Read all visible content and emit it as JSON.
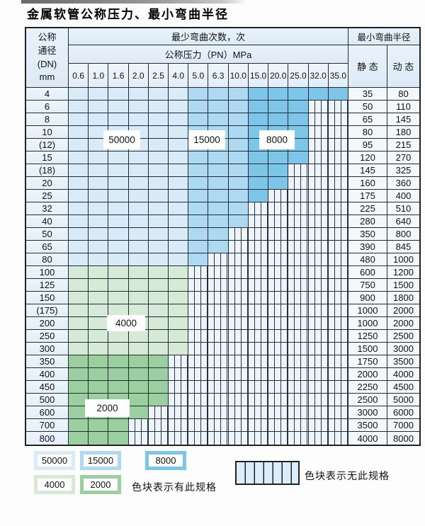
{
  "title": "金属软管公称压力、最小弯曲半径",
  "table": {
    "header": {
      "dn_lines": [
        "公称",
        "通径",
        "(DN)",
        "mm"
      ],
      "bend_cycles": "最少弯曲次数，次",
      "pressure": "公称压力（PN）MPa",
      "pn_columns": [
        "0.6",
        "1.0",
        "1.6",
        "2.0",
        "2.5",
        "4.0",
        "5.0",
        "6.3",
        "10.0",
        "15.0",
        "20.0",
        "25.0",
        "32.0",
        "35.0"
      ],
      "min_radius": "最小弯曲半径",
      "static_label": "静 态",
      "dynamic_label": "动 态"
    },
    "rows": [
      {
        "dn": "4",
        "fill": "blue",
        "span": 14,
        "static": "35",
        "dynamic": "80"
      },
      {
        "dn": "6",
        "fill": "blue",
        "span": 12,
        "static": "50",
        "dynamic": "110"
      },
      {
        "dn": "8",
        "fill": "blue",
        "span": 12,
        "static": "65",
        "dynamic": "145"
      },
      {
        "dn": "10",
        "fill": "blue",
        "span": 12,
        "static": "80",
        "dynamic": "180"
      },
      {
        "dn": "(12)",
        "fill": "blue",
        "span": 12,
        "static": "95",
        "dynamic": "215"
      },
      {
        "dn": "15",
        "fill": "blue",
        "span": 12,
        "static": "120",
        "dynamic": "270"
      },
      {
        "dn": "(18)",
        "fill": "blue",
        "span": 11,
        "static": "145",
        "dynamic": "325"
      },
      {
        "dn": "20",
        "fill": "blue",
        "span": 11,
        "static": "160",
        "dynamic": "360"
      },
      {
        "dn": "25",
        "fill": "blue",
        "span": 10,
        "static": "175",
        "dynamic": "400"
      },
      {
        "dn": "32",
        "fill": "blue",
        "span": 9,
        "static": "225",
        "dynamic": "510"
      },
      {
        "dn": "40",
        "fill": "blue",
        "span": 9,
        "static": "280",
        "dynamic": "640"
      },
      {
        "dn": "50",
        "fill": "blue",
        "span": 8,
        "static": "350",
        "dynamic": "800"
      },
      {
        "dn": "65",
        "fill": "blue",
        "span": 8,
        "static": "390",
        "dynamic": "845"
      },
      {
        "dn": "80",
        "fill": "blue",
        "span": 7,
        "static": "480",
        "dynamic": "1000"
      },
      {
        "dn": "100",
        "fill": "green-4000",
        "span": 6,
        "static": "600",
        "dynamic": "1200"
      },
      {
        "dn": "125",
        "fill": "green-4000",
        "span": 6,
        "static": "750",
        "dynamic": "1500"
      },
      {
        "dn": "150",
        "fill": "green-4000",
        "span": 6,
        "static": "900",
        "dynamic": "1800"
      },
      {
        "dn": "(175)",
        "fill": "green-4000",
        "span": 6,
        "static": "1000",
        "dynamic": "2000"
      },
      {
        "dn": "200",
        "fill": "green-4000",
        "span": 6,
        "static": "1000",
        "dynamic": "2000"
      },
      {
        "dn": "250",
        "fill": "green-4000",
        "span": 6,
        "static": "1250",
        "dynamic": "2500"
      },
      {
        "dn": "300",
        "fill": "green-4000",
        "span": 6,
        "static": "1500",
        "dynamic": "3000"
      },
      {
        "dn": "350",
        "fill": "green-2000",
        "span": 5,
        "static": "1750",
        "dynamic": "3500"
      },
      {
        "dn": "400",
        "fill": "green-2000",
        "span": 5,
        "static": "2000",
        "dynamic": "4000"
      },
      {
        "dn": "450",
        "fill": "green-2000",
        "span": 5,
        "static": "2250",
        "dynamic": "4500"
      },
      {
        "dn": "500",
        "fill": "green-2000",
        "span": 5,
        "static": "2500",
        "dynamic": "5000"
      },
      {
        "dn": "600",
        "fill": "green-2000",
        "span": 4,
        "static": "3000",
        "dynamic": "6000"
      },
      {
        "dn": "700",
        "fill": "green-2000",
        "span": 3,
        "static": "3500",
        "dynamic": "7000"
      },
      {
        "dn": "800",
        "fill": "green-2000",
        "span": 3,
        "static": "4000",
        "dynamic": "8000"
      }
    ]
  },
  "annotations": [
    {
      "label": "50000"
    },
    {
      "label": "15000"
    },
    {
      "label": "8000"
    },
    {
      "label": "4000"
    },
    {
      "label": "2000"
    }
  ],
  "colors": {
    "blue_50000": "#d9ebf8",
    "blue_15000": "#aed9f2",
    "blue_8000": "#7ec5ea",
    "green_4000": "#d7e9d7",
    "green_2000": "#9ccf9f"
  },
  "legend": {
    "items": [
      {
        "label": "50000",
        "color": "#d9ebf8"
      },
      {
        "label": "15000",
        "color": "#aed9f2"
      },
      {
        "label": "8000",
        "color": "#7ec5ea"
      },
      {
        "label": "4000",
        "color": "#d7e9d7"
      },
      {
        "label": "2000",
        "color": "#9ccf9f"
      }
    ],
    "has_spec_note": "色块表示有此规格",
    "no_spec_note": "色块表示无此规格"
  }
}
